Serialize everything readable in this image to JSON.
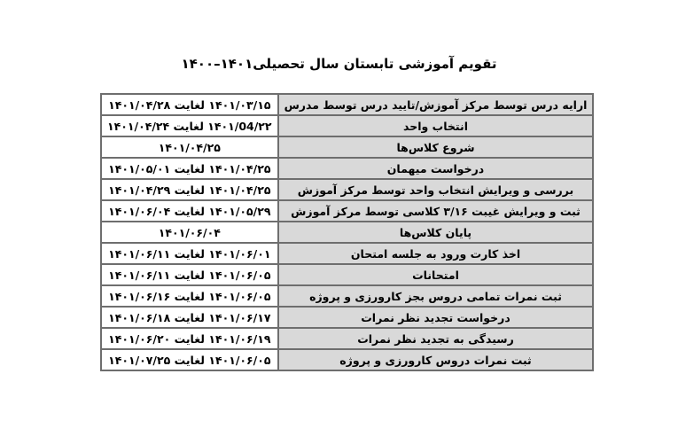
{
  "title": "تقویم آموزشی تابستان سال تحصیلی۱۴۰۱–۱۴۰۰",
  "rows": [
    {
      "event": "ارایه درس توسط مرکز آموزش/تایید درس توسط مدرس",
      "date": "۱۴۰۱/۰۳/۱۵ لغایت ۱۴۰۱/۰۴/۲۸"
    },
    {
      "event": "انتخاب واحد",
      "date": "۱۴۰۱/04/۲۲ لغایت ۱۴۰۱/۰۴/۲۴"
    },
    {
      "event": "شروع کلاس‌ها",
      "date": "۱۴۰۱/۰۴/۲۵"
    },
    {
      "event": "درخواست میهمان",
      "date": "۱۴۰۱/۰۴/۲۵ لغایت ۱۴۰۱/۰۵/۰۱"
    },
    {
      "event": "بررسی و ویرایش انتخاب واحد توسط مرکز آموزش",
      "date": "۱۴۰۱/۰۴/۲۵ لغایت ۱۴۰۱/۰۴/۲۹"
    },
    {
      "event": "ثبت و ویرایش غیبت ۳/۱۶ کلاسی توسط مرکز آموزش",
      "date": "۱۴۰۱/۰۵/۲۹ لغایت ۱۴۰۱/۰۶/۰۴"
    },
    {
      "event": "پایان کلاس‌ها",
      "date": "۱۴۰۱/۰۶/۰۴"
    },
    {
      "event": "اخذ کارت ورود به جلسه امتحان",
      "date": "۱۴۰۱/۰۶/۰۱ لغایت ۱۴۰۱/۰۶/۱۱"
    },
    {
      "event": "امتحانات",
      "date": "۱۴۰۱/۰۶/۰۵ لغایت ۱۴۰۱/۰۶/۱۱"
    },
    {
      "event": "ثبت نمرات تمامی دروس بجز کارورزی و پروژه",
      "date": "۱۴۰۱/۰۶/۰۵ لغایت ۱۴۰۱/۰۶/۱۶"
    },
    {
      "event": "درخواست تجدید نظر نمرات",
      "date": "۱۴۰۱/۰۶/۱۷ لغایت ۱۴۰۱/۰۶/۱۸"
    },
    {
      "event": "رسیدگی به تجدید نظر نمرات",
      "date": "۱۴۰۱/۰۶/۱۹ لغایت ۱۴۰۱/۰۶/۲۰"
    },
    {
      "event": "ثبت نمرات دروس کارورزی و پروژه",
      "date": "۱۴۰۱/۰۶/۰۵ لغایت ۱۴۰۱/۰۷/۲۵"
    }
  ]
}
